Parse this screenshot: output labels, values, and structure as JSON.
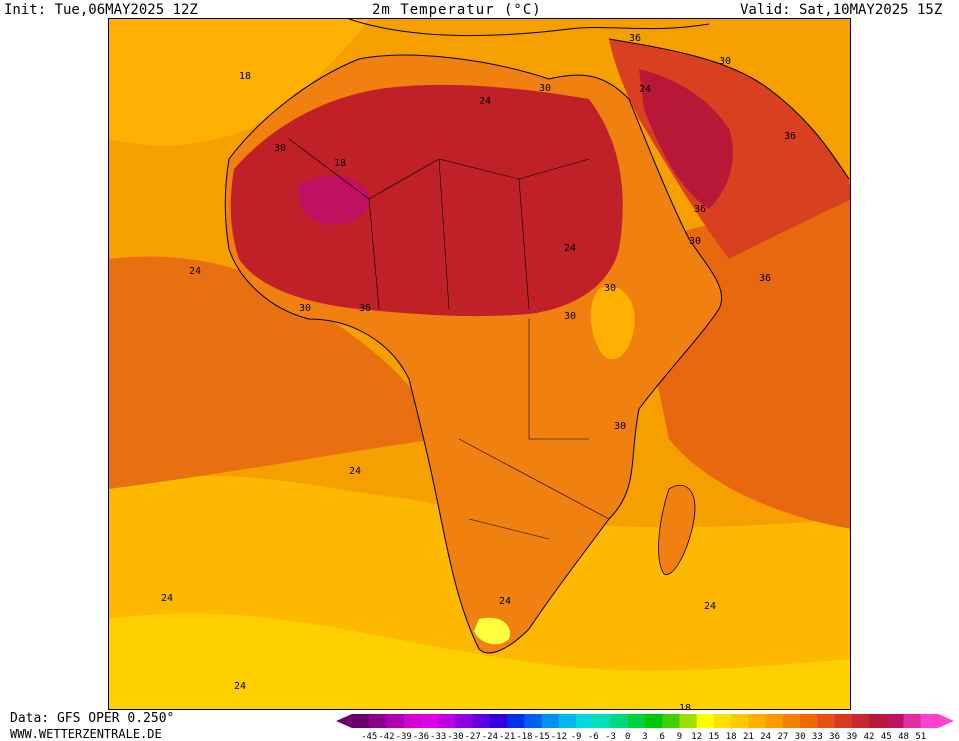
{
  "header": {
    "init": "Init: Tue,06MAY2025 12Z",
    "title": "2m Temperatur (°C)",
    "valid": "Valid: Sat,10MAY2025 15Z"
  },
  "footer": {
    "data": "Data: GFS OPER 0.250°",
    "site": "WWW.WETTERZENTRALE.DE"
  },
  "map": {
    "contour_labels": [
      "18",
      "24",
      "30",
      "36",
      "30",
      "24",
      "30",
      "24",
      "30",
      "36",
      "30",
      "30",
      "36",
      "30",
      "36",
      "36",
      "30",
      "24",
      "24",
      "24",
      "24",
      "24",
      "18",
      "24",
      "18"
    ]
  },
  "legend": {
    "ticks": [
      "-45",
      "-42",
      "-39",
      "-36",
      "-33",
      "-30",
      "-27",
      "-24",
      "-21",
      "-18",
      "-15",
      "-12",
      "-9",
      "-6",
      "-3",
      "0",
      "3",
      "6",
      "9",
      "12",
      "15",
      "18",
      "21",
      "24",
      "27",
      "30",
      "33",
      "36",
      "39",
      "42",
      "45",
      "48",
      "51"
    ],
    "colors": [
      "#6a006a",
      "#8a008a",
      "#b000b0",
      "#d400d4",
      "#e000e8",
      "#c000e0",
      "#9000e0",
      "#6000e0",
      "#3000e0",
      "#0030e8",
      "#0060f0",
      "#0090f0",
      "#00b8f0",
      "#00d8e0",
      "#00e0b0",
      "#00d880",
      "#00d040",
      "#00c800",
      "#40d000",
      "#a0e000",
      "#ffff00",
      "#ffe000",
      "#ffc800",
      "#ffb000",
      "#ff9800",
      "#f88000",
      "#f06800",
      "#e85018",
      "#d83a20",
      "#c82830",
      "#b81838",
      "#c01060",
      "#e030a0",
      "#ff40d0"
    ]
  }
}
